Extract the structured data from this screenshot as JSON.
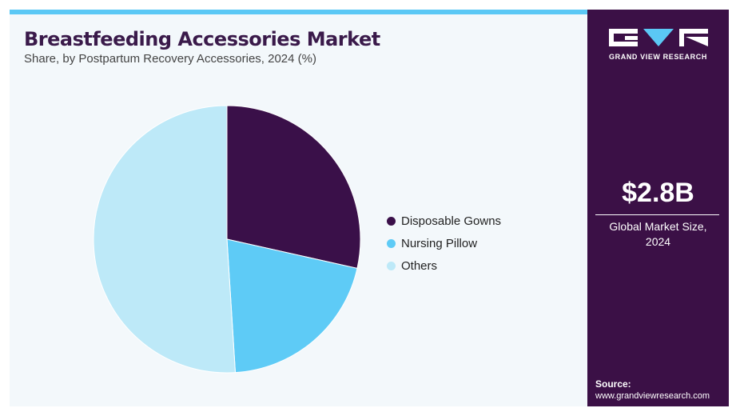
{
  "header": {
    "title": "Breastfeeding Accessories Market",
    "subtitle": "Share, by Postpartum Recovery Accessories, 2024 (%)"
  },
  "chart_data": {
    "type": "pie",
    "title": "Breastfeeding Accessories Market",
    "subtitle": "Share, by Postpartum Recovery Accessories, 2024 (%)",
    "categories": [
      "Disposable Gowns",
      "Nursing Pillow",
      "Others"
    ],
    "values": [
      28.5,
      20.5,
      51.0
    ],
    "colors": [
      "#3a1049",
      "#5ecbf6",
      "#bde9f8"
    ],
    "legend_position": "right"
  },
  "legend": {
    "items": [
      {
        "label": "Disposable Gowns",
        "color": "#3a1049"
      },
      {
        "label": "Nursing Pillow",
        "color": "#5ecbf6"
      },
      {
        "label": "Others",
        "color": "#bde9f8"
      }
    ]
  },
  "sidebar": {
    "brand": "GRAND VIEW RESEARCH",
    "market_size": "$2.8B",
    "market_label_line1": "Global Market Size,",
    "market_label_line2": "2024",
    "source_label": "Source:",
    "source_url": "www.grandviewresearch.com"
  },
  "colors": {
    "accent": "#5bc8f5",
    "brand": "#3b1046",
    "background": "#f3f8fb"
  }
}
